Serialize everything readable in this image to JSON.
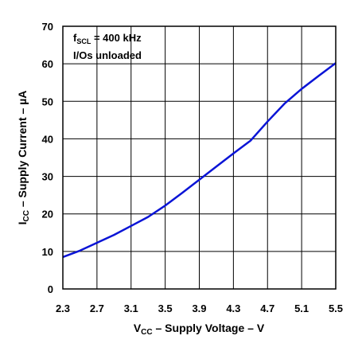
{
  "chart_data": {
    "type": "line",
    "title": "",
    "xlabel": {
      "main": "V",
      "sub": "CC",
      "rest": " – Supply Voltage – V"
    },
    "ylabel": {
      "main": "I",
      "sub": "CC",
      "rest": " – Supply Current – µA"
    },
    "xlim": [
      2.3,
      5.5
    ],
    "ylim": [
      0,
      70
    ],
    "x_ticks": [
      "2.3",
      "2.7",
      "3.1",
      "3.5",
      "3.9",
      "4.3",
      "4.7",
      "5.1",
      "5.5"
    ],
    "y_ticks": [
      "0",
      "10",
      "20",
      "30",
      "40",
      "50",
      "60",
      "70"
    ],
    "grid": true,
    "annotations": [
      {
        "main": "f",
        "sub": "SCL",
        "rest": " = 400 kHz"
      },
      {
        "text": "I/Os unloaded"
      }
    ],
    "series": [
      {
        "color": "#0a14d6",
        "x": [
          2.3,
          2.5,
          2.7,
          2.9,
          3.1,
          3.3,
          3.5,
          3.7,
          3.9,
          4.1,
          4.3,
          4.5,
          4.7,
          4.9,
          5.1,
          5.3,
          5.5
        ],
        "y": [
          8.5,
          10.2,
          12.3,
          14.4,
          16.8,
          19.2,
          22.2,
          25.6,
          29.1,
          32.6,
          36.1,
          39.5,
          44.6,
          49.4,
          53.3,
          56.8,
          60.2
        ]
      }
    ]
  }
}
